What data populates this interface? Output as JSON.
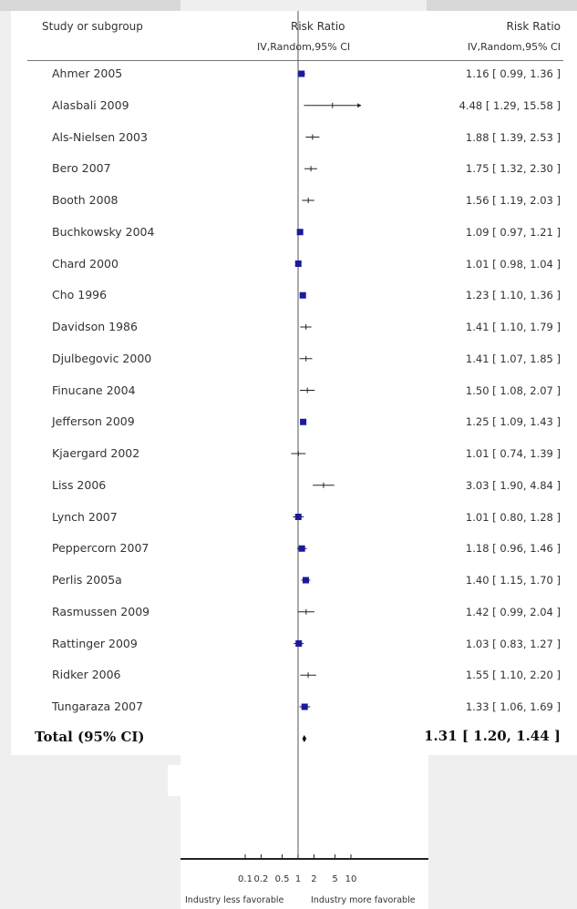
{
  "header": {
    "col_study": "Study or subgroup",
    "col_plot_title": "Risk Ratio",
    "col_plot_sub": "IV,Random,95% CI",
    "col_ci_title": "Risk Ratio",
    "col_ci_sub": "IV,Random,95% CI"
  },
  "total": {
    "label": "Total (95% CI)",
    "ci_text": "1.31 [ 1.20, 1.44 ]"
  },
  "axis": {
    "left_label": "Industry less favorable",
    "right_label": "Industry more favorable"
  },
  "colors": {
    "marker": "#1a1aa0",
    "line": "#222222",
    "reference": "#555555"
  },
  "chart_data": {
    "type": "forest",
    "xscale": "log",
    "reference_value": 1,
    "x_ticks": [
      0.1,
      0.2,
      0.5,
      1,
      2,
      5,
      10
    ],
    "x_tick_labels": [
      "0.1",
      "0.2",
      "0.5",
      "1",
      "2",
      "5",
      "10"
    ],
    "studies": [
      {
        "name": "Ahmer 2005",
        "rr": 1.16,
        "lo": 0.99,
        "hi": 1.36,
        "ci_text": "1.16 [ 0.99, 1.36 ]",
        "marker": "square"
      },
      {
        "name": "Alasbali 2009",
        "rr": 4.48,
        "lo": 1.29,
        "hi": 15.58,
        "ci_text": "4.48 [ 1.29, 15.58 ]",
        "marker": "tick"
      },
      {
        "name": "Als-Nielsen 2003",
        "rr": 1.88,
        "lo": 1.39,
        "hi": 2.53,
        "ci_text": "1.88 [ 1.39, 2.53 ]",
        "marker": "tick"
      },
      {
        "name": "Bero 2007",
        "rr": 1.75,
        "lo": 1.32,
        "hi": 2.3,
        "ci_text": "1.75 [ 1.32, 2.30 ]",
        "marker": "tick"
      },
      {
        "name": "Booth 2008",
        "rr": 1.56,
        "lo": 1.19,
        "hi": 2.03,
        "ci_text": "1.56 [ 1.19, 2.03 ]",
        "marker": "tick"
      },
      {
        "name": "Buchkowsky 2004",
        "rr": 1.09,
        "lo": 0.97,
        "hi": 1.21,
        "ci_text": "1.09 [ 0.97, 1.21 ]",
        "marker": "square"
      },
      {
        "name": "Chard 2000",
        "rr": 1.01,
        "lo": 0.98,
        "hi": 1.04,
        "ci_text": "1.01 [ 0.98, 1.04 ]",
        "marker": "square"
      },
      {
        "name": "Cho 1996",
        "rr": 1.23,
        "lo": 1.1,
        "hi": 1.36,
        "ci_text": "1.23 [ 1.10, 1.36 ]",
        "marker": "square"
      },
      {
        "name": "Davidson 1986",
        "rr": 1.41,
        "lo": 1.1,
        "hi": 1.79,
        "ci_text": "1.41 [ 1.10, 1.79 ]",
        "marker": "tick"
      },
      {
        "name": "Djulbegovic 2000",
        "rr": 1.41,
        "lo": 1.07,
        "hi": 1.85,
        "ci_text": "1.41 [ 1.07, 1.85 ]",
        "marker": "tick"
      },
      {
        "name": "Finucane 2004",
        "rr": 1.5,
        "lo": 1.08,
        "hi": 2.07,
        "ci_text": "1.50 [ 1.08, 2.07 ]",
        "marker": "tick"
      },
      {
        "name": "Jefferson 2009",
        "rr": 1.25,
        "lo": 1.09,
        "hi": 1.43,
        "ci_text": "1.25 [ 1.09, 1.43 ]",
        "marker": "square"
      },
      {
        "name": "Kjaergard 2002",
        "rr": 1.01,
        "lo": 0.74,
        "hi": 1.39,
        "ci_text": "1.01 [ 0.74, 1.39 ]",
        "marker": "tick"
      },
      {
        "name": "Liss 2006",
        "rr": 3.03,
        "lo": 1.9,
        "hi": 4.84,
        "ci_text": "3.03 [ 1.90, 4.84 ]",
        "marker": "tick"
      },
      {
        "name": "Lynch 2007",
        "rr": 1.01,
        "lo": 0.8,
        "hi": 1.28,
        "ci_text": "1.01 [ 0.80, 1.28 ]",
        "marker": "square"
      },
      {
        "name": "Peppercorn 2007",
        "rr": 1.18,
        "lo": 0.96,
        "hi": 1.46,
        "ci_text": "1.18 [ 0.96, 1.46 ]",
        "marker": "square"
      },
      {
        "name": "Perlis 2005a",
        "rr": 1.4,
        "lo": 1.15,
        "hi": 1.7,
        "ci_text": "1.40 [ 1.15, 1.70 ]",
        "marker": "square"
      },
      {
        "name": "Rasmussen 2009",
        "rr": 1.42,
        "lo": 0.99,
        "hi": 2.04,
        "ci_text": "1.42 [ 0.99, 2.04 ]",
        "marker": "tick"
      },
      {
        "name": "Rattinger 2009",
        "rr": 1.03,
        "lo": 0.83,
        "hi": 1.27,
        "ci_text": "1.03 [ 0.83, 1.27 ]",
        "marker": "square"
      },
      {
        "name": "Ridker 2006",
        "rr": 1.55,
        "lo": 1.1,
        "hi": 2.2,
        "ci_text": "1.55 [ 1.10, 2.20 ]",
        "marker": "tick"
      },
      {
        "name": "Tungaraza 2007",
        "rr": 1.33,
        "lo": 1.06,
        "hi": 1.69,
        "ci_text": "1.33 [ 1.06, 1.69 ]",
        "marker": "square"
      }
    ],
    "total": {
      "rr": 1.31,
      "lo": 1.2,
      "hi": 1.44
    }
  }
}
